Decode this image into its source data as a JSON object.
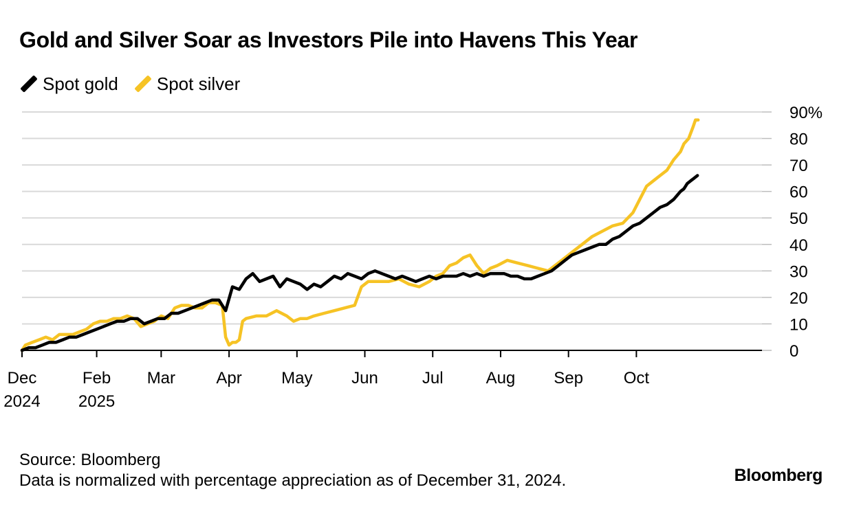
{
  "title": "Gold and Silver Soar as Investors Pile into Havens This Year",
  "legend": [
    {
      "label": "Spot gold",
      "color": "#000000"
    },
    {
      "label": "Spot silver",
      "color": "#f6c325"
    }
  ],
  "footer": {
    "source": "Source: Bloomberg",
    "note": "Data is normalized with percentage appreciation as of December 31, 2024.",
    "brand": "Bloomberg"
  },
  "chart_data": {
    "type": "line",
    "title": "Gold and Silver Soar as Investors Pile into Havens This Year",
    "xlabel": "",
    "ylabel": "",
    "ylim": [
      0,
      90
    ],
    "xlim": [
      0,
      10.9
    ],
    "yticks": [
      0,
      10,
      20,
      30,
      40,
      50,
      60,
      70,
      80,
      90
    ],
    "ytick_labels": [
      "0",
      "10",
      "20",
      "30",
      "40",
      "50",
      "60",
      "70",
      "80",
      "90%"
    ],
    "grid": true,
    "legend_position": "top-left",
    "x_unit": "months since Dec 31, 2024",
    "xticks": [
      {
        "x": 0,
        "line1": "Dec",
        "line2": "2024"
      },
      {
        "x": 1.1,
        "line1": "Feb",
        "line2": "2025"
      },
      {
        "x": 2.05,
        "line1": "Mar",
        "line2": ""
      },
      {
        "x": 3.05,
        "line1": "Apr",
        "line2": ""
      },
      {
        "x": 4.05,
        "line1": "May",
        "line2": ""
      },
      {
        "x": 5.05,
        "line1": "Jun",
        "line2": ""
      },
      {
        "x": 6.05,
        "line1": "Jul",
        "line2": ""
      },
      {
        "x": 7.05,
        "line1": "Aug",
        "line2": ""
      },
      {
        "x": 8.05,
        "line1": "Sep",
        "line2": ""
      },
      {
        "x": 9.05,
        "line1": "Oct",
        "line2": ""
      }
    ],
    "series": [
      {
        "name": "Spot silver",
        "color": "#f6c325",
        "x": [
          0,
          0.05,
          0.15,
          0.25,
          0.35,
          0.45,
          0.55,
          0.65,
          0.75,
          0.85,
          0.95,
          1.05,
          1.15,
          1.25,
          1.35,
          1.45,
          1.55,
          1.65,
          1.75,
          1.85,
          1.95,
          2.05,
          2.15,
          2.25,
          2.35,
          2.45,
          2.55,
          2.65,
          2.75,
          2.85,
          2.95,
          3.0,
          3.05,
          3.1,
          3.15,
          3.2,
          3.25,
          3.3,
          3.45,
          3.6,
          3.75,
          3.9,
          4.0,
          4.1,
          4.2,
          4.3,
          4.45,
          4.6,
          4.75,
          4.9,
          5.0,
          5.1,
          5.25,
          5.4,
          5.55,
          5.7,
          5.85,
          6.0,
          6.1,
          6.2,
          6.3,
          6.4,
          6.5,
          6.6,
          6.7,
          6.8,
          6.9,
          7.0,
          7.15,
          7.3,
          7.45,
          7.6,
          7.75,
          7.9,
          8.0,
          8.1,
          8.25,
          8.4,
          8.55,
          8.7,
          8.85,
          9.0,
          9.1,
          9.2,
          9.3,
          9.4,
          9.5,
          9.6,
          9.7,
          9.75,
          9.82,
          9.88,
          9.92,
          9.96
        ],
        "values": [
          0,
          2,
          3,
          4,
          5,
          4,
          6,
          6,
          6,
          7,
          8,
          10,
          11,
          11,
          12,
          12,
          13,
          12,
          9,
          10,
          11,
          13,
          12,
          16,
          17,
          17,
          16,
          16,
          18,
          18,
          17,
          5,
          2,
          3,
          3,
          4,
          11,
          12,
          13,
          13,
          15,
          13,
          11,
          12,
          12,
          13,
          14,
          15,
          16,
          17,
          24,
          26,
          26,
          26,
          27,
          25,
          24,
          26,
          28,
          29,
          32,
          33,
          35,
          36,
          32,
          29,
          31,
          32,
          34,
          33,
          32,
          31,
          30,
          33,
          35,
          37,
          40,
          43,
          45,
          47,
          48,
          52,
          57,
          62,
          64,
          66,
          68,
          72,
          75,
          78,
          80,
          84,
          87,
          87
        ]
      },
      {
        "name": "Spot gold",
        "color": "#000000",
        "x": [
          0,
          0.1,
          0.2,
          0.3,
          0.4,
          0.5,
          0.6,
          0.7,
          0.8,
          0.9,
          1.0,
          1.1,
          1.2,
          1.3,
          1.4,
          1.5,
          1.6,
          1.7,
          1.8,
          1.9,
          2.0,
          2.1,
          2.2,
          2.3,
          2.4,
          2.5,
          2.6,
          2.7,
          2.8,
          2.9,
          3.0,
          3.1,
          3.2,
          3.3,
          3.4,
          3.5,
          3.6,
          3.7,
          3.8,
          3.9,
          4.0,
          4.1,
          4.2,
          4.3,
          4.4,
          4.5,
          4.6,
          4.7,
          4.8,
          4.9,
          5.0,
          5.1,
          5.2,
          5.3,
          5.4,
          5.5,
          5.6,
          5.7,
          5.8,
          5.9,
          6.0,
          6.1,
          6.2,
          6.3,
          6.4,
          6.5,
          6.6,
          6.7,
          6.8,
          6.9,
          7.0,
          7.1,
          7.2,
          7.3,
          7.4,
          7.5,
          7.6,
          7.7,
          7.8,
          7.9,
          8.0,
          8.1,
          8.2,
          8.3,
          8.4,
          8.5,
          8.6,
          8.7,
          8.8,
          8.9,
          9.0,
          9.1,
          9.2,
          9.3,
          9.4,
          9.5,
          9.6,
          9.7,
          9.75,
          9.8,
          9.85,
          9.9,
          9.95
        ],
        "values": [
          0,
          1,
          1,
          2,
          3,
          3,
          4,
          5,
          5,
          6,
          7,
          8,
          9,
          10,
          11,
          11,
          12,
          12,
          10,
          11,
          12,
          12,
          14,
          14,
          15,
          16,
          17,
          18,
          19,
          19,
          15,
          24,
          23,
          27,
          29,
          26,
          27,
          28,
          24,
          27,
          26,
          25,
          23,
          25,
          24,
          26,
          28,
          27,
          29,
          28,
          27,
          29,
          30,
          29,
          28,
          27,
          28,
          27,
          26,
          27,
          28,
          27,
          28,
          28,
          28,
          29,
          28,
          29,
          28,
          29,
          29,
          29,
          28,
          28,
          27,
          27,
          28,
          29,
          30,
          32,
          34,
          36,
          37,
          38,
          39,
          40,
          40,
          42,
          43,
          45,
          47,
          48,
          50,
          52,
          54,
          55,
          57,
          60,
          61,
          63,
          64,
          65,
          66
        ]
      }
    ]
  }
}
